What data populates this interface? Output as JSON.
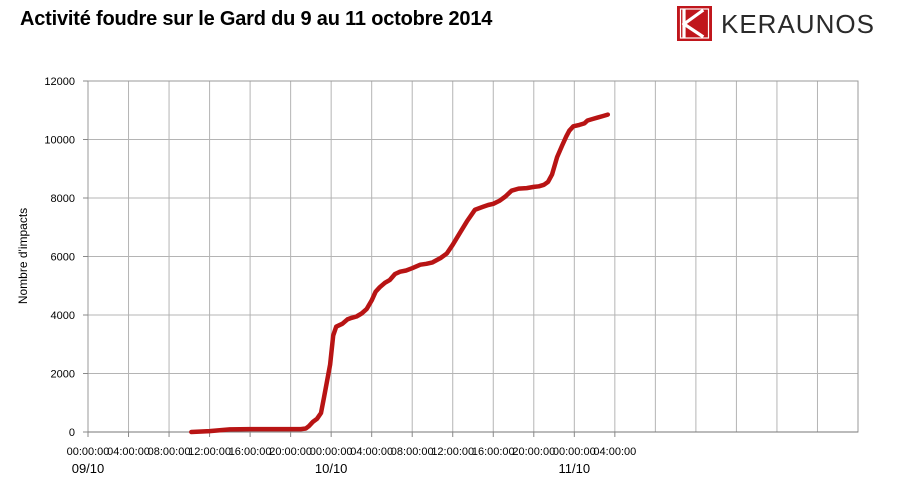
{
  "header": {
    "title": "Activité foudre sur le Gard du 9 au 11 octobre 2014",
    "logo_text": "KERAUNOS",
    "brand_color": "#c0161c"
  },
  "chart_data": {
    "type": "line",
    "title": "Activité foudre sur le Gard du 9 au 11 octobre 2014",
    "xlabel": "",
    "ylabel": "Nombre d'impacts",
    "ylim": [
      0,
      12000
    ],
    "yticks": [
      0,
      2000,
      4000,
      6000,
      8000,
      10000,
      12000
    ],
    "xlim_hours": [
      0,
      76
    ],
    "xticks": [
      {
        "hour": 0,
        "label": "00:00:00"
      },
      {
        "hour": 4,
        "label": "04:00:00"
      },
      {
        "hour": 8,
        "label": "08:00:00"
      },
      {
        "hour": 12,
        "label": "12:00:00"
      },
      {
        "hour": 16,
        "label": "16:00:00"
      },
      {
        "hour": 20,
        "label": "20:00:00"
      },
      {
        "hour": 24,
        "label": "00:00:00"
      },
      {
        "hour": 28,
        "label": "04:00:00"
      },
      {
        "hour": 32,
        "label": "08:00:00"
      },
      {
        "hour": 36,
        "label": "12:00:00"
      },
      {
        "hour": 40,
        "label": "16:00:00"
      },
      {
        "hour": 44,
        "label": "20:00:00"
      },
      {
        "hour": 48,
        "label": "00:00:00"
      },
      {
        "hour": 52,
        "label": "04:00:00"
      }
    ],
    "date_labels": [
      {
        "hour": 0,
        "label": "09/10"
      },
      {
        "hour": 24,
        "label": "10/10"
      },
      {
        "hour": 48,
        "label": "11/10"
      }
    ],
    "grid": true,
    "line_color": "#b81414",
    "series": [
      {
        "name": "",
        "x": [
          10.2,
          12,
          14,
          16,
          18,
          20,
          21,
          21.5,
          21.8,
          22.2,
          22.6,
          23,
          23.3,
          23.6,
          23.9,
          24.2,
          24.5,
          24.8,
          25.1,
          25.6,
          26,
          26.5,
          27,
          27.5,
          28,
          28.4,
          28.8,
          29.3,
          29.8,
          30.3,
          30.8,
          31.4,
          32,
          32.8,
          33.4,
          34,
          34.8,
          35.4,
          36,
          36.7,
          37.4,
          38.2,
          39,
          39.5,
          40,
          40.6,
          41.2,
          41.8,
          42.5,
          43.3,
          44,
          44.5,
          45,
          45.4,
          45.8,
          46.3,
          46.8,
          47.2,
          47.5,
          47.9,
          48.5,
          49,
          49.3,
          49.8,
          50.3,
          50.8,
          51.3
        ],
        "y": [
          0,
          30,
          90,
          100,
          100,
          100,
          100,
          120,
          200,
          350,
          450,
          650,
          1200,
          1750,
          2300,
          3300,
          3600,
          3650,
          3700,
          3850,
          3900,
          3950,
          4050,
          4200,
          4500,
          4800,
          4950,
          5100,
          5200,
          5400,
          5480,
          5520,
          5600,
          5720,
          5750,
          5800,
          5950,
          6100,
          6400,
          6800,
          7200,
          7600,
          7700,
          7760,
          7800,
          7900,
          8050,
          8250,
          8320,
          8340,
          8380,
          8400,
          8450,
          8550,
          8800,
          9400,
          9800,
          10100,
          10300,
          10450,
          10500,
          10550,
          10650,
          10700,
          10750,
          10800,
          10850
        ]
      }
    ]
  }
}
